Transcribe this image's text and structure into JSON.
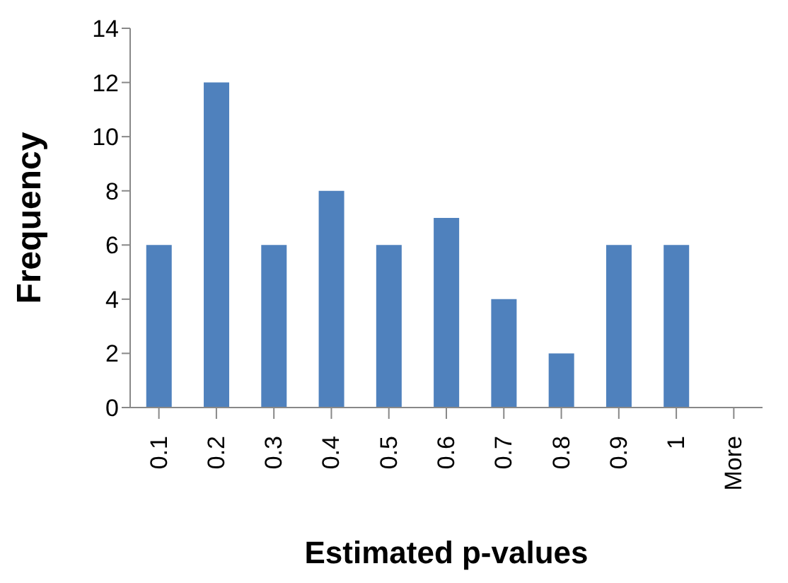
{
  "chart_data": {
    "type": "bar",
    "xlabel": "Estimated p-values",
    "ylabel": "Frequency",
    "categories": [
      "0.1",
      "0.2",
      "0.3",
      "0.4",
      "0.5",
      "0.6",
      "0.7",
      "0.8",
      "0.9",
      "1",
      "More"
    ],
    "values": [
      6,
      12,
      6,
      8,
      6,
      7,
      4,
      2,
      6,
      6,
      0
    ],
    "color": "#4f81bd",
    "ylim": [
      0,
      14
    ],
    "yticks": [
      0,
      2,
      4,
      6,
      8,
      10,
      12,
      14
    ],
    "grid": false,
    "legend": false
  }
}
